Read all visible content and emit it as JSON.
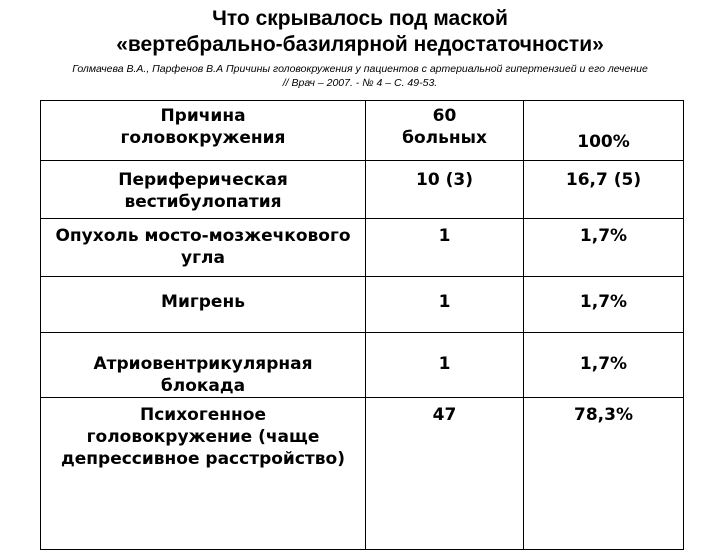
{
  "slide": {
    "title_line1": "Что скрывалось под маской",
    "title_line2": "«вертебрально-базилярной недостаточности»",
    "citation_line1": "Голмачева В.А., Парфенов В.А Причины головокружения у пациентов с артериальной гипертензией и его лечение",
    "citation_line2": "// Врач – 2007. - № 4 – С. 49-53."
  },
  "table": {
    "headers": {
      "cause": "Причина\nголовокружения",
      "patients": "60\nбольных",
      "percent": "100%"
    },
    "rows": [
      {
        "cause": "Периферическая\nвестибулопатия",
        "patients": "10 (3)",
        "percent": "16,7 (5)"
      },
      {
        "cause": "Опухоль мосто-мозжечкового\nугла",
        "patients": "1",
        "percent": "1,7%"
      },
      {
        "cause": "Мигрень",
        "patients": "1",
        "percent": "1,7%"
      },
      {
        "cause": "Атриовентрикулярная\nблокада",
        "patients": "1",
        "percent": "1,7%"
      },
      {
        "cause": "Психогенное\nголовокружение (чаще\nдепрессивное расстройство)",
        "patients": "47",
        "percent": "78,3%"
      }
    ]
  }
}
